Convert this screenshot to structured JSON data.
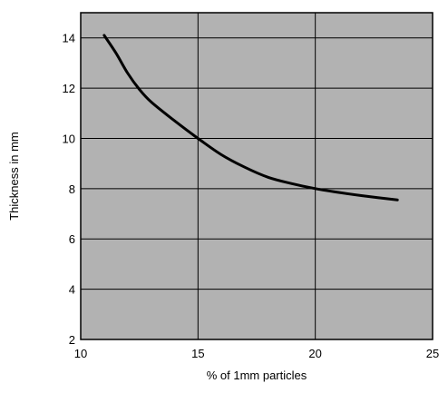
{
  "chart_data": {
    "type": "line",
    "title": "",
    "xlabel": "% of 1mm particles",
    "ylabel": "Thickness in mm",
    "xlim": [
      10,
      25
    ],
    "ylim": [
      2,
      15
    ],
    "x_ticks": [
      10,
      15,
      20,
      25
    ],
    "y_ticks": [
      2,
      4,
      6,
      8,
      10,
      12,
      14
    ],
    "grid": true,
    "legend": "none",
    "plot_background": "#b2b2b2",
    "line_color": "#000000",
    "series": [
      {
        "x": [
          11,
          11.5,
          12,
          12.5,
          13,
          14,
          15,
          16,
          17,
          18,
          19,
          20,
          21,
          22,
          23.5
        ],
        "y": [
          14.1,
          13.4,
          12.6,
          11.95,
          11.45,
          10.7,
          10.0,
          9.35,
          8.85,
          8.45,
          8.2,
          8.0,
          7.85,
          7.72,
          7.55
        ]
      }
    ]
  }
}
